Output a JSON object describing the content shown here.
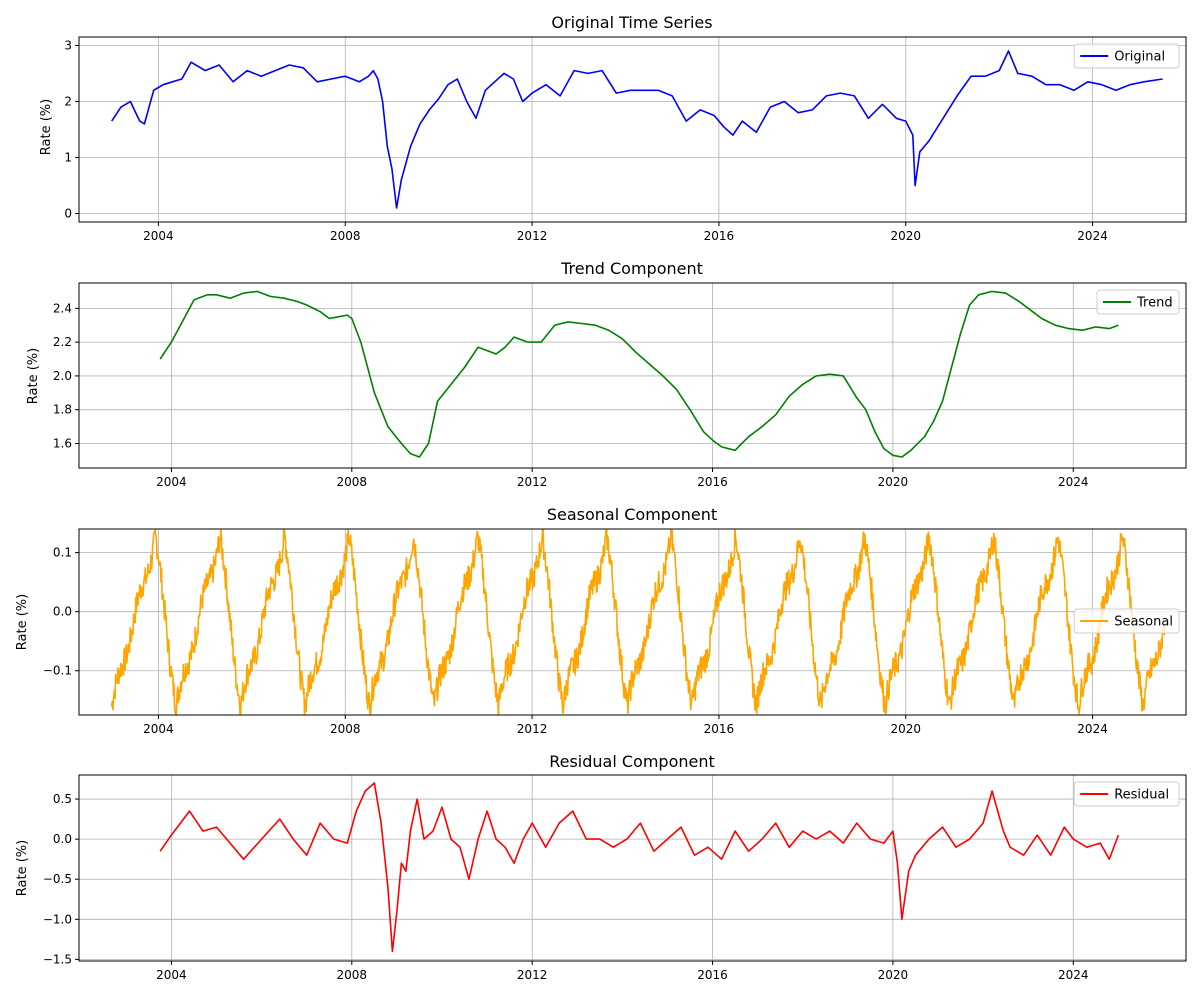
{
  "figure": {
    "background": "#ffffff",
    "grid_color": "#b0b0b0"
  },
  "chart_data": [
    {
      "type": "line",
      "title": "Original Time Series",
      "xlabel": "",
      "ylabel": "Rate (%)",
      "xlim": [
        2002.3,
        2026.0
      ],
      "ylim": [
        -0.15,
        3.15
      ],
      "xticks": [
        2004,
        2008,
        2012,
        2016,
        2020,
        2024
      ],
      "xtick_labels": [
        "2004",
        "2008",
        "2012",
        "2016",
        "2020",
        "2024"
      ],
      "yticks": [
        0,
        1,
        2,
        3
      ],
      "ytick_labels": [
        "0",
        "1",
        "2",
        "3"
      ],
      "grid": true,
      "legend": {
        "position": "top-right",
        "entries": [
          "Original"
        ]
      },
      "series": [
        {
          "name": "Original",
          "color": "#0000ff",
          "x": [
            2003.0,
            2003.2,
            2003.4,
            2003.6,
            2003.7,
            2003.9,
            2004.1,
            2004.3,
            2004.5,
            2004.7,
            2005.0,
            2005.3,
            2005.6,
            2005.9,
            2006.2,
            2006.5,
            2006.8,
            2007.1,
            2007.4,
            2007.7,
            2008.0,
            2008.3,
            2008.5,
            2008.6,
            2008.7,
            2008.8,
            2008.9,
            2009.0,
            2009.1,
            2009.2,
            2009.4,
            2009.6,
            2009.8,
            2010.0,
            2010.2,
            2010.4,
            2010.6,
            2010.8,
            2011.0,
            2011.2,
            2011.4,
            2011.6,
            2011.8,
            2012.0,
            2012.3,
            2012.6,
            2012.9,
            2013.2,
            2013.5,
            2013.8,
            2014.1,
            2014.4,
            2014.7,
            2015.0,
            2015.3,
            2015.6,
            2015.9,
            2016.1,
            2016.3,
            2016.5,
            2016.8,
            2017.1,
            2017.4,
            2017.7,
            2018.0,
            2018.3,
            2018.6,
            2018.9,
            2019.2,
            2019.5,
            2019.8,
            2020.0,
            2020.15,
            2020.2,
            2020.3,
            2020.5,
            2020.8,
            2021.1,
            2021.4,
            2021.7,
            2022.0,
            2022.2,
            2022.4,
            2022.7,
            2023.0,
            2023.3,
            2023.6,
            2023.9,
            2024.2,
            2024.5,
            2024.8,
            2025.1,
            2025.5
          ],
          "y": [
            1.65,
            1.9,
            2.0,
            1.65,
            1.6,
            2.2,
            2.3,
            2.35,
            2.4,
            2.7,
            2.55,
            2.65,
            2.35,
            2.55,
            2.45,
            2.55,
            2.65,
            2.6,
            2.35,
            2.4,
            2.45,
            2.35,
            2.45,
            2.55,
            2.4,
            2.0,
            1.2,
            0.8,
            0.1,
            0.6,
            1.2,
            1.6,
            1.85,
            2.05,
            2.3,
            2.4,
            2.0,
            1.7,
            2.2,
            2.35,
            2.5,
            2.4,
            2.0,
            2.15,
            2.3,
            2.1,
            2.55,
            2.5,
            2.55,
            2.15,
            2.2,
            2.2,
            2.2,
            2.1,
            1.65,
            1.85,
            1.75,
            1.55,
            1.4,
            1.65,
            1.45,
            1.9,
            2.0,
            1.8,
            1.85,
            2.1,
            2.15,
            2.1,
            1.7,
            1.95,
            1.7,
            1.65,
            1.4,
            0.5,
            1.1,
            1.3,
            1.7,
            2.1,
            2.45,
            2.45,
            2.55,
            2.9,
            2.5,
            2.45,
            2.3,
            2.3,
            2.2,
            2.35,
            2.3,
            2.2,
            2.3,
            2.35,
            2.4
          ]
        }
      ]
    },
    {
      "type": "line",
      "title": "Trend Component",
      "xlabel": "",
      "ylabel": "Rate (%)",
      "xlim": [
        2001.95,
        2026.5
      ],
      "ylim": [
        1.455,
        2.55
      ],
      "xticks": [
        2004,
        2008,
        2012,
        2016,
        2020,
        2024
      ],
      "xtick_labels": [
        "2004",
        "2008",
        "2012",
        "2016",
        "2020",
        "2024"
      ],
      "yticks": [
        1.6,
        1.8,
        2.0,
        2.2,
        2.4
      ],
      "ytick_labels": [
        "1.6",
        "1.8",
        "2.0",
        "2.2",
        "2.4"
      ],
      "grid": true,
      "legend": {
        "position": "top-right",
        "entries": [
          "Trend"
        ]
      },
      "series": [
        {
          "name": "Trend",
          "color": "#008000",
          "x": [
            2003.75,
            2004.0,
            2004.3,
            2004.5,
            2004.8,
            2005.0,
            2005.3,
            2005.6,
            2005.9,
            2006.2,
            2006.5,
            2006.8,
            2007.0,
            2007.3,
            2007.5,
            2007.7,
            2007.9,
            2008.0,
            2008.2,
            2008.5,
            2008.8,
            2009.1,
            2009.3,
            2009.5,
            2009.7,
            2009.9,
            2010.2,
            2010.5,
            2010.8,
            2011.0,
            2011.2,
            2011.4,
            2011.6,
            2011.9,
            2012.2,
            2012.5,
            2012.8,
            2013.1,
            2013.4,
            2013.7,
            2014.0,
            2014.3,
            2014.6,
            2014.9,
            2015.2,
            2015.5,
            2015.8,
            2016.0,
            2016.2,
            2016.5,
            2016.8,
            2017.1,
            2017.4,
            2017.7,
            2018.0,
            2018.3,
            2018.6,
            2018.9,
            2019.2,
            2019.4,
            2019.6,
            2019.8,
            2020.0,
            2020.2,
            2020.4,
            2020.7,
            2020.9,
            2021.1,
            2021.3,
            2021.5,
            2021.7,
            2021.9,
            2022.2,
            2022.5,
            2022.8,
            2023.0,
            2023.3,
            2023.6,
            2023.9,
            2024.2,
            2024.5,
            2024.8,
            2025.0
          ],
          "y": [
            2.1,
            2.2,
            2.35,
            2.45,
            2.48,
            2.48,
            2.46,
            2.49,
            2.5,
            2.47,
            2.46,
            2.44,
            2.42,
            2.38,
            2.34,
            2.35,
            2.36,
            2.34,
            2.2,
            1.9,
            1.7,
            1.6,
            1.54,
            1.52,
            1.6,
            1.85,
            1.95,
            2.05,
            2.17,
            2.15,
            2.13,
            2.17,
            2.23,
            2.2,
            2.2,
            2.3,
            2.32,
            2.31,
            2.3,
            2.27,
            2.22,
            2.14,
            2.07,
            2.0,
            1.92,
            1.8,
            1.67,
            1.62,
            1.58,
            1.56,
            1.64,
            1.7,
            1.77,
            1.88,
            1.95,
            2.0,
            2.01,
            2.0,
            1.87,
            1.8,
            1.67,
            1.57,
            1.53,
            1.52,
            1.56,
            1.64,
            1.73,
            1.85,
            2.05,
            2.25,
            2.42,
            2.48,
            2.5,
            2.49,
            2.44,
            2.4,
            2.34,
            2.3,
            2.28,
            2.27,
            2.29,
            2.28,
            2.3
          ]
        }
      ]
    },
    {
      "type": "line",
      "title": "Seasonal Component",
      "xlabel": "",
      "ylabel": "Rate (%)",
      "xlim": [
        2002.3,
        2026.0
      ],
      "ylim": [
        -0.175,
        0.14
      ],
      "xticks": [
        2004,
        2008,
        2012,
        2016,
        2020,
        2024
      ],
      "xtick_labels": [
        "2004",
        "2008",
        "2012",
        "2016",
        "2020",
        "2024"
      ],
      "yticks": [
        -0.1,
        0.0,
        0.1
      ],
      "ytick_labels": [
        "−0.1",
        "0.0",
        "0.1"
      ],
      "grid": true,
      "legend": {
        "position": "center-right",
        "entries": [
          "Seasonal"
        ]
      },
      "series": [
        {
          "name": "Seasonal",
          "color": "#ffa500",
          "period": 1.38,
          "start": 2003.0,
          "end": 2025.55,
          "peak": 0.125,
          "trough": -0.16
        }
      ]
    },
    {
      "type": "line",
      "title": "Residual Component",
      "xlabel": "",
      "ylabel": "Rate (%)",
      "xlim": [
        2001.95,
        2026.5
      ],
      "ylim": [
        -1.52,
        0.8
      ],
      "xticks": [
        2004,
        2008,
        2012,
        2016,
        2020,
        2024
      ],
      "xtick_labels": [
        "2004",
        "2008",
        "2012",
        "2016",
        "2020",
        "2024"
      ],
      "yticks": [
        -1.5,
        -1.0,
        -0.5,
        0.0,
        0.5
      ],
      "ytick_labels": [
        "−1.5",
        "−1.0",
        "−0.5",
        "0.0",
        "0.5"
      ],
      "grid": true,
      "legend": {
        "position": "top-right",
        "entries": [
          "Residual"
        ]
      },
      "series": [
        {
          "name": "Residual",
          "color": "#ff0000",
          "x": [
            2003.75,
            2004.0,
            2004.4,
            2004.7,
            2005.0,
            2005.3,
            2005.6,
            2006.0,
            2006.4,
            2006.7,
            2007.0,
            2007.3,
            2007.6,
            2007.9,
            2008.1,
            2008.3,
            2008.5,
            2008.65,
            2008.8,
            2008.9,
            2009.0,
            2009.1,
            2009.2,
            2009.3,
            2009.45,
            2009.6,
            2009.8,
            2010.0,
            2010.2,
            2010.4,
            2010.6,
            2010.8,
            2011.0,
            2011.2,
            2011.4,
            2011.6,
            2011.8,
            2012.0,
            2012.3,
            2012.6,
            2012.9,
            2013.2,
            2013.5,
            2013.8,
            2014.1,
            2014.4,
            2014.7,
            2015.0,
            2015.3,
            2015.6,
            2015.9,
            2016.2,
            2016.5,
            2016.8,
            2017.1,
            2017.4,
            2017.7,
            2018.0,
            2018.3,
            2018.6,
            2018.9,
            2019.2,
            2019.5,
            2019.8,
            2020.0,
            2020.1,
            2020.2,
            2020.35,
            2020.5,
            2020.8,
            2021.1,
            2021.4,
            2021.7,
            2022.0,
            2022.2,
            2022.3,
            2022.45,
            2022.6,
            2022.9,
            2023.2,
            2023.5,
            2023.8,
            2024.0,
            2024.3,
            2024.6,
            2024.8,
            2025.0
          ],
          "y": [
            -0.15,
            0.05,
            0.35,
            0.1,
            0.15,
            -0.05,
            -0.25,
            0.0,
            0.25,
            0.0,
            -0.2,
            0.2,
            0.0,
            -0.05,
            0.35,
            0.6,
            0.7,
            0.2,
            -0.6,
            -1.4,
            -0.9,
            -0.3,
            -0.4,
            0.1,
            0.5,
            0.0,
            0.1,
            0.4,
            0.0,
            -0.1,
            -0.5,
            0.0,
            0.35,
            0.0,
            -0.1,
            -0.3,
            0.0,
            0.2,
            -0.1,
            0.2,
            0.35,
            0.0,
            0.0,
            -0.1,
            0.0,
            0.2,
            -0.15,
            0.0,
            0.15,
            -0.2,
            -0.1,
            -0.25,
            0.1,
            -0.15,
            0.0,
            0.2,
            -0.1,
            0.1,
            0.0,
            0.1,
            -0.05,
            0.2,
            0.0,
            -0.05,
            0.1,
            -0.3,
            -1.0,
            -0.4,
            -0.2,
            0.0,
            0.15,
            -0.1,
            0.0,
            0.2,
            0.6,
            0.4,
            0.1,
            -0.1,
            -0.2,
            0.05,
            -0.2,
            0.15,
            0.0,
            -0.1,
            -0.05,
            -0.25,
            0.05
          ]
        }
      ]
    }
  ]
}
